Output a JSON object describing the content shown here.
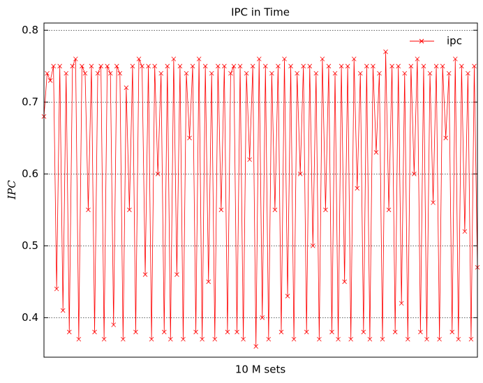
{
  "chart_data": {
    "type": "line",
    "title": "IPC in Time",
    "x_label": "10 M sets",
    "y_label": "IPC",
    "ylim": [
      0.345,
      0.81
    ],
    "yticks": [
      0.4,
      0.5,
      0.6,
      0.7,
      0.8
    ],
    "grid": true,
    "legend": "upper right",
    "series": [
      {
        "name": "ipc",
        "color": "#ff0000",
        "values": [
          0.68,
          0.74,
          0.73,
          0.75,
          0.44,
          0.75,
          0.41,
          0.74,
          0.38,
          0.75,
          0.76,
          0.37,
          0.75,
          0.74,
          0.55,
          0.75,
          0.38,
          0.74,
          0.75,
          0.37,
          0.75,
          0.74,
          0.39,
          0.75,
          0.74,
          0.37,
          0.72,
          0.55,
          0.75,
          0.38,
          0.76,
          0.75,
          0.46,
          0.75,
          0.37,
          0.75,
          0.6,
          0.74,
          0.38,
          0.75,
          0.37,
          0.76,
          0.46,
          0.75,
          0.37,
          0.74,
          0.65,
          0.75,
          0.38,
          0.76,
          0.37,
          0.75,
          0.45,
          0.74,
          0.37,
          0.75,
          0.55,
          0.75,
          0.38,
          0.74,
          0.75,
          0.38,
          0.75,
          0.37,
          0.74,
          0.62,
          0.75,
          0.36,
          0.76,
          0.4,
          0.75,
          0.37,
          0.74,
          0.55,
          0.75,
          0.38,
          0.76,
          0.43,
          0.75,
          0.37,
          0.74,
          0.6,
          0.75,
          0.38,
          0.75,
          0.5,
          0.74,
          0.37,
          0.76,
          0.55,
          0.75,
          0.38,
          0.74,
          0.37,
          0.75,
          0.45,
          0.75,
          0.37,
          0.76,
          0.58,
          0.74,
          0.38,
          0.75,
          0.37,
          0.75,
          0.63,
          0.74,
          0.37,
          0.77,
          0.55,
          0.75,
          0.38,
          0.75,
          0.42,
          0.74,
          0.37,
          0.75,
          0.6,
          0.76,
          0.38,
          0.75,
          0.37,
          0.74,
          0.56,
          0.75,
          0.37,
          0.75,
          0.65,
          0.74,
          0.38,
          0.76,
          0.37,
          0.75,
          0.52,
          0.74,
          0.37,
          0.75,
          0.47
        ]
      }
    ]
  }
}
